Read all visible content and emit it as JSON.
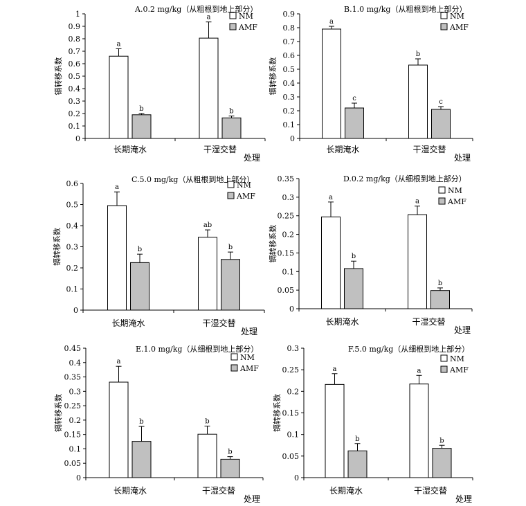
{
  "chart_data": [
    {
      "type": "bar",
      "title": "A.0.2 mg/kg（从粗根到地上部分）",
      "ylabel": "镉转移系数",
      "xlabel": "处理",
      "categories": [
        "长期淹水",
        "干湿交替"
      ],
      "ylim": [
        0,
        1
      ],
      "yticks": [
        "0",
        "0.1",
        "0.2",
        "0.3",
        "0.4",
        "0.5",
        "0.6",
        "0.7",
        "0.8",
        "0.9",
        "1"
      ],
      "series": [
        {
          "name": "NM",
          "color": "#ffffff",
          "values": [
            0.66,
            0.805
          ],
          "errors": [
            0.06,
            0.13
          ],
          "letters": [
            "a",
            "a"
          ]
        },
        {
          "name": "AMF",
          "color": "#c0c0c0",
          "values": [
            0.19,
            0.165
          ],
          "errors": [
            0.01,
            0.015
          ],
          "letters": [
            "b",
            "b"
          ]
        }
      ]
    },
    {
      "type": "bar",
      "title": "B.1.0 mg/kg（从粗根到地上部分）",
      "ylabel": "镉转移系数",
      "xlabel": "处理",
      "categories": [
        "长期淹水",
        "干湿交替"
      ],
      "ylim": [
        0,
        0.9
      ],
      "yticks": [
        "0",
        "0.1",
        "0.2",
        "0.3",
        "0.4",
        "0.5",
        "0.6",
        "0.7",
        "0.8",
        "0.9"
      ],
      "series": [
        {
          "name": "NM",
          "color": "#ffffff",
          "values": [
            0.79,
            0.53
          ],
          "errors": [
            0.02,
            0.045
          ],
          "letters": [
            "a",
            "b"
          ]
        },
        {
          "name": "AMF",
          "color": "#c0c0c0",
          "values": [
            0.22,
            0.21
          ],
          "errors": [
            0.035,
            0.02
          ],
          "letters": [
            "c",
            "c"
          ]
        }
      ]
    },
    {
      "type": "bar",
      "title": "C.5.0 mg/kg（从粗根到地上部分）",
      "ylabel": "镉转移系数",
      "xlabel": "处理",
      "categories": [
        "长期淹水",
        "干湿交替"
      ],
      "ylim": [
        0,
        0.6
      ],
      "yticks": [
        "0",
        "0.1",
        "0.2",
        "0.3",
        "0.4",
        "0.5",
        "0.6"
      ],
      "series": [
        {
          "name": "NM",
          "color": "#ffffff",
          "values": [
            0.495,
            0.345
          ],
          "errors": [
            0.065,
            0.035
          ],
          "letters": [
            "a",
            "ab"
          ]
        },
        {
          "name": "AMF",
          "color": "#c0c0c0",
          "values": [
            0.225,
            0.24
          ],
          "errors": [
            0.04,
            0.035
          ],
          "letters": [
            "b",
            "b"
          ]
        }
      ]
    },
    {
      "type": "bar",
      "title": "D.0.2 mg/kg（从细根到地上部分）",
      "ylabel": "镉转移系数",
      "xlabel": "处理",
      "categories": [
        "长期淹水",
        "干湿交替"
      ],
      "ylim": [
        0,
        0.35
      ],
      "yticks": [
        "0",
        "0.05",
        "0.1",
        "0.15",
        "0.2",
        "0.25",
        "0.3",
        "0.35"
      ],
      "series": [
        {
          "name": "NM",
          "color": "#ffffff",
          "values": [
            0.247,
            0.253
          ],
          "errors": [
            0.04,
            0.023
          ],
          "letters": [
            "a",
            "a"
          ]
        },
        {
          "name": "AMF",
          "color": "#c0c0c0",
          "values": [
            0.108,
            0.049
          ],
          "errors": [
            0.02,
            0.007
          ],
          "letters": [
            "b",
            "b"
          ]
        }
      ]
    },
    {
      "type": "bar",
      "title": "E.1.0 mg/kg（从细根到地上部分）",
      "ylabel": "镉转移系数",
      "xlabel": "处理",
      "categories": [
        "长期淹水",
        "干湿交替"
      ],
      "ylim": [
        0,
        0.45
      ],
      "yticks": [
        "0",
        "0.05",
        "0.1",
        "0.15",
        "0.2",
        "0.25",
        "0.3",
        "0.35",
        "0.4",
        "0.45"
      ],
      "series": [
        {
          "name": "NM",
          "color": "#ffffff",
          "values": [
            0.332,
            0.151
          ],
          "errors": [
            0.055,
            0.028
          ],
          "letters": [
            "a",
            "b"
          ]
        },
        {
          "name": "AMF",
          "color": "#c0c0c0",
          "values": [
            0.126,
            0.064
          ],
          "errors": [
            0.052,
            0.009
          ],
          "letters": [
            "b",
            "b"
          ]
        }
      ]
    },
    {
      "type": "bar",
      "title": "F.5.0 mg/kg（从细根到地上部分）",
      "ylabel": "镉转移系数",
      "xlabel": "处理",
      "categories": [
        "长期淹水",
        "干湿交替"
      ],
      "ylim": [
        0,
        0.3
      ],
      "yticks": [
        "0",
        "0.05",
        "0.1",
        "0.15",
        "0.2",
        "0.25",
        "0.3"
      ],
      "series": [
        {
          "name": "NM",
          "color": "#ffffff",
          "values": [
            0.216,
            0.217
          ],
          "errors": [
            0.025,
            0.02
          ],
          "letters": [
            "a",
            "a"
          ]
        },
        {
          "name": "AMF",
          "color": "#c0c0c0",
          "values": [
            0.062,
            0.068
          ],
          "errors": [
            0.017,
            0.007
          ],
          "letters": [
            "b",
            "b"
          ]
        }
      ]
    }
  ]
}
